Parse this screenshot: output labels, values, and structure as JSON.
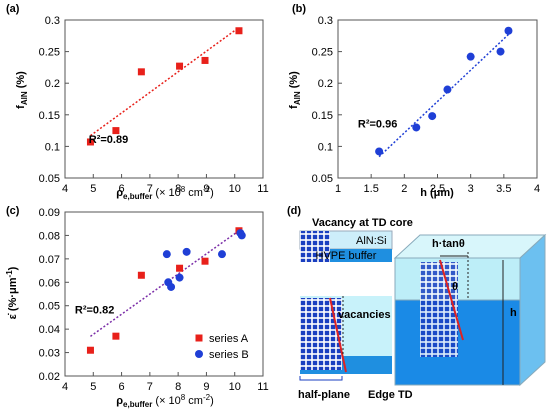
{
  "chart_data": [
    {
      "type": "scatter",
      "panel": "(a)",
      "x": [
        4.9,
        5.8,
        6.7,
        8.05,
        8.95,
        10.15
      ],
      "values": [
        0.107,
        0.125,
        0.218,
        0.227,
        0.236,
        0.283
      ],
      "color": "#e8201a",
      "marker": "square",
      "trendline_color": "#e8201a",
      "annotation": "R²=0.89",
      "x_label": [
        "ρ",
        "e,buffer",
        " (× 10",
        "8",
        " cm",
        "-2",
        ")"
      ],
      "y_label": [
        "f",
        "AlN",
        " (%)"
      ],
      "xlim": [
        4,
        11
      ],
      "xticks": [
        4,
        5,
        6,
        7,
        8,
        9,
        10,
        11
      ],
      "ylim": [
        0.05,
        0.3
      ],
      "yticks": [
        0.05,
        0.1,
        0.15,
        0.2,
        0.25,
        0.3
      ]
    },
    {
      "type": "scatter",
      "panel": "(b)",
      "x": [
        1.62,
        2.18,
        2.42,
        2.65,
        3.0,
        3.45,
        3.57
      ],
      "values": [
        0.092,
        0.13,
        0.148,
        0.19,
        0.242,
        0.25,
        0.283
      ],
      "color": "#1f3fd6",
      "marker": "circle",
      "trendline_color": "#1f3fd6",
      "annotation": "R²=0.96",
      "x_label": [
        "h (μm)"
      ],
      "y_label": [
        "f",
        "AlN",
        " (%)"
      ],
      "xlim": [
        1,
        4
      ],
      "xticks": [
        1,
        1.5,
        2,
        2.5,
        3,
        3.5,
        4
      ],
      "ylim": [
        0.05,
        0.3
      ],
      "yticks": [
        0.05,
        0.1,
        0.15,
        0.2,
        0.25,
        0.3
      ]
    },
    {
      "type": "scatter",
      "panel": "(c)",
      "trendline_color": "#7b2ea8",
      "annotation": "R²=0.82",
      "legend": "lower right",
      "series": [
        {
          "name": "series A",
          "color": "#e8201a",
          "marker": "square",
          "x": [
            4.9,
            5.8,
            6.7,
            8.05,
            8.95,
            10.15
          ],
          "values": [
            0.031,
            0.037,
            0.063,
            0.066,
            0.069,
            0.082
          ]
        },
        {
          "name": "series B",
          "color": "#1f3fd6",
          "marker": "circle",
          "x": [
            7.6,
            7.65,
            7.75,
            8.05,
            8.3,
            9.55,
            10.2,
            10.25
          ],
          "values": [
            0.072,
            0.06,
            0.058,
            0.062,
            0.073,
            0.072,
            0.081,
            0.08
          ]
        }
      ],
      "x_label": [
        "ρ",
        "e,buffer",
        " (× 10",
        "8",
        " cm",
        "-2",
        ")"
      ],
      "y_label": [
        "ε̇ (%·μm",
        "-1",
        ")"
      ],
      "xlim": [
        4,
        11
      ],
      "xticks": [
        4,
        5,
        6,
        7,
        8,
        9,
        10,
        11
      ],
      "ylim": [
        0.02,
        0.09
      ],
      "yticks": [
        0.02,
        0.03,
        0.04,
        0.05,
        0.06,
        0.07,
        0.08,
        0.09
      ]
    }
  ],
  "diagram": {
    "panel": "(d)",
    "labels": [
      "Vacancy at TD core",
      "AlN:Si",
      "HVPE buffer",
      "vacancies",
      "half-plane",
      "Edge TD",
      "h·tanθ",
      "θ",
      "h"
    ]
  }
}
